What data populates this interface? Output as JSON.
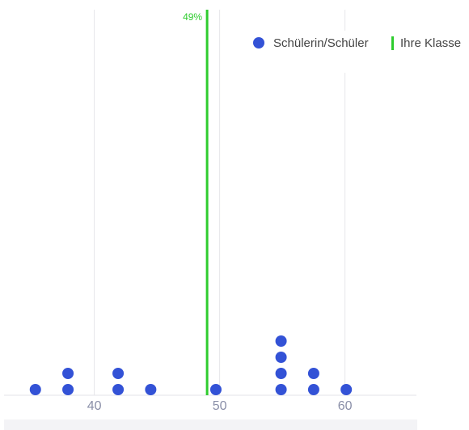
{
  "chart_data": {
    "type": "dotplot",
    "series": [
      {
        "name": "Schülerin/Schüler",
        "color": "#3352d6",
        "values": [
          35.3,
          37.9,
          37.9,
          41.9,
          41.9,
          44.5,
          49.7,
          54.9,
          54.9,
          54.9,
          54.9,
          57.5,
          57.5,
          60.1
        ]
      }
    ],
    "reference_line": {
      "name": "Ihre Klasse",
      "value": 49,
      "label": "49%",
      "color": "#2ecc2e"
    },
    "xlim": [
      32.8,
      65.7
    ],
    "xticks": [
      40,
      50,
      60
    ],
    "grid": true,
    "legend": "top-right"
  }
}
